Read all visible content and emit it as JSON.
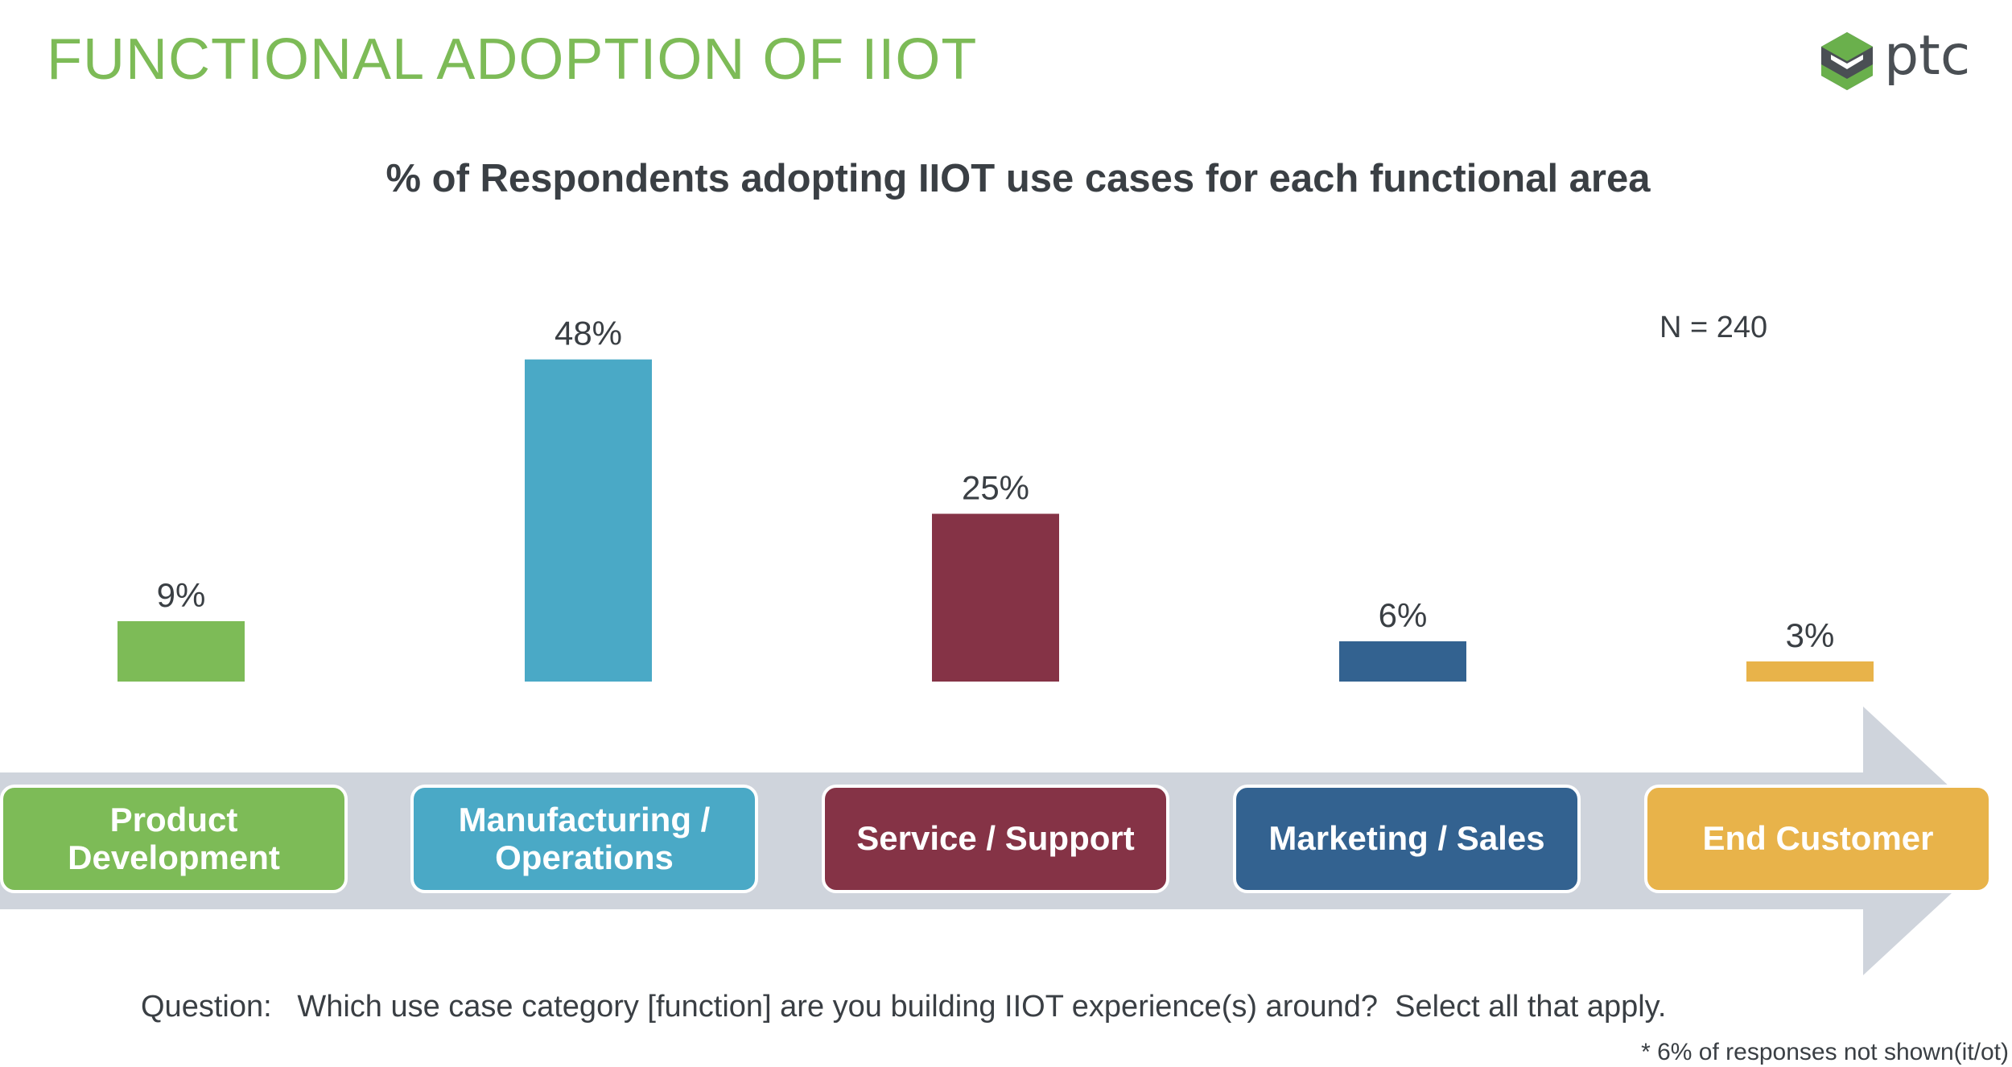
{
  "header": {
    "title": "FUNCTIONAL ADOPTION OF IIOT",
    "logo_text": "ptc"
  },
  "colors": {
    "title": "#7dbb57",
    "arrow": "#cfd4dc",
    "text": "#3a3f44",
    "logo_green": "#6ab04c",
    "logo_dark": "#4a4f54"
  },
  "chart_data": {
    "type": "bar",
    "title": "% of Respondents adopting IIOT use cases for each functional area",
    "categories": [
      "Product Development",
      "Manufacturing / Operations",
      "Service / Support",
      "Marketing / Sales",
      "End Customer"
    ],
    "category_labels": [
      [
        "Product",
        "Development"
      ],
      [
        "Manufacturing /",
        "Operations"
      ],
      [
        "Service / Support"
      ],
      [
        "Marketing / Sales"
      ],
      [
        "End Customer"
      ]
    ],
    "values": [
      9,
      48,
      25,
      6,
      3
    ],
    "value_labels": [
      "9%",
      "48%",
      "25%",
      "6%",
      "3%"
    ],
    "colors": [
      "#7dbb57",
      "#4aa9c6",
      "#853346",
      "#336290",
      "#e8b34a"
    ],
    "unit": "%",
    "ylim": [
      0,
      50
    ],
    "grid": false,
    "annotation": "N = 240"
  },
  "footer": {
    "question": "Question:   Which use case category [function] are you building IIOT experience(s) around?  Select all that apply.",
    "footnote": "* 6% of responses not shown(it/ot)"
  }
}
